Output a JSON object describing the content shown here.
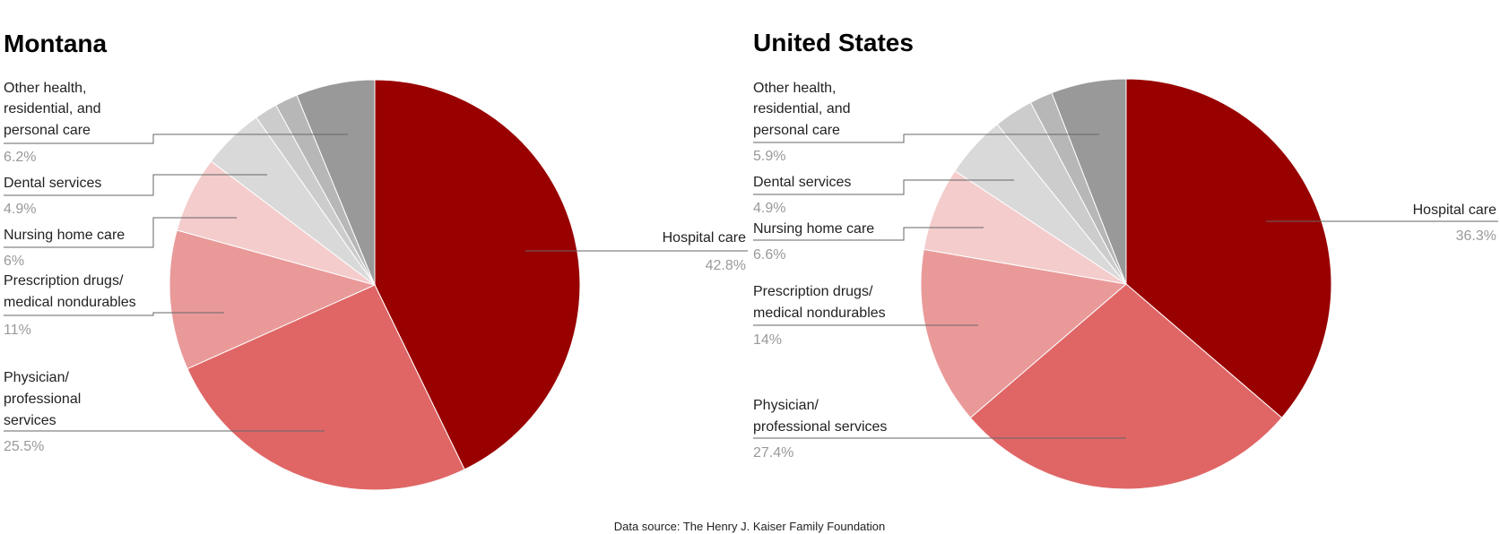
{
  "chart_data": [
    {
      "type": "pie",
      "title": "Montana",
      "slices": [
        {
          "label": "Hospital care",
          "value": 42.8,
          "display": "42.8%",
          "color": "#990000"
        },
        {
          "label": "Physician/ professional services",
          "value": 25.5,
          "display": "25.5%",
          "color": "#e06666"
        },
        {
          "label": "Prescription drugs/ medical nondurables",
          "value": 11,
          "display": "11%",
          "color": "#ea9999"
        },
        {
          "label": "Nursing home care",
          "value": 6,
          "display": "6%",
          "color": "#f4cccc"
        },
        {
          "label": "Dental services",
          "value": 4.9,
          "display": "4.9%",
          "color": "#d9d9d9"
        },
        {
          "label": "",
          "value": 1.8,
          "display": "",
          "color": "#cccccc"
        },
        {
          "label": "",
          "value": 1.8,
          "display": "",
          "color": "#b7b7b7"
        },
        {
          "label": "Other health, residential, and personal care",
          "value": 6.2,
          "display": "6.2%",
          "color": "#999999"
        }
      ]
    },
    {
      "type": "pie",
      "title": "United States",
      "slices": [
        {
          "label": "Hospital care",
          "value": 36.3,
          "display": "36.3%",
          "color": "#990000"
        },
        {
          "label": "Physician/ professional services",
          "value": 27.4,
          "display": "27.4%",
          "color": "#e06666"
        },
        {
          "label": "Prescription drugs/ medical nondurables",
          "value": 14,
          "display": "14%",
          "color": "#ea9999"
        },
        {
          "label": "Nursing home care",
          "value": 6.6,
          "display": "6.6%",
          "color": "#f4cccc"
        },
        {
          "label": "Dental services",
          "value": 4.9,
          "display": "4.9%",
          "color": "#d9d9d9"
        },
        {
          "label": "",
          "value": 3.1,
          "display": "",
          "color": "#cccccc"
        },
        {
          "label": "",
          "value": 1.8,
          "display": "",
          "color": "#b7b7b7"
        },
        {
          "label": "Other health, residential, and personal care",
          "value": 5.9,
          "display": "5.9%",
          "color": "#999999"
        }
      ]
    }
  ],
  "footer": {
    "source": "Data source: The Henry J. Kaiser Family Foundation"
  }
}
